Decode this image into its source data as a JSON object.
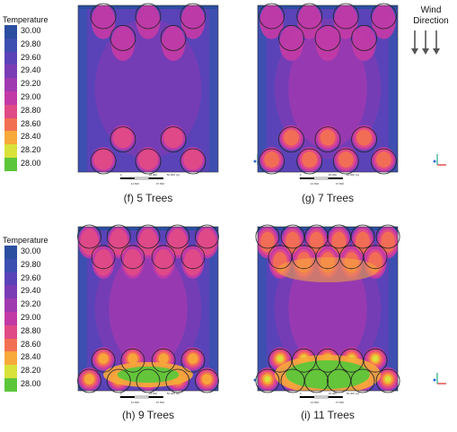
{
  "legend": {
    "title": "Temperature",
    "levels": [
      {
        "value": "30.00",
        "color": "#2b4ea0"
      },
      {
        "value": "29.80",
        "color": "#3d4fb0"
      },
      {
        "value": "29.60",
        "color": "#5a43b8"
      },
      {
        "value": "29.40",
        "color": "#7a3cb4"
      },
      {
        "value": "29.20",
        "color": "#a03ab0"
      },
      {
        "value": "29.00",
        "color": "#c23aa6"
      },
      {
        "value": "28.80",
        "color": "#e04a86"
      },
      {
        "value": "28.60",
        "color": "#f27052"
      },
      {
        "value": "28.40",
        "color": "#f7a93a"
      },
      {
        "value": "28.20",
        "color": "#d8e23a"
      },
      {
        "value": "28.00",
        "color": "#5cc63a"
      }
    ]
  },
  "wind": {
    "line1": "Wind",
    "line2": "Direction"
  },
  "panels": [
    {
      "caption": "(f)  5 Trees",
      "trees": 5
    },
    {
      "caption": "(g) 7 Trees",
      "trees": 7
    },
    {
      "caption": "(h) 9 Trees",
      "trees": 9
    },
    {
      "caption": "(i) 11 Trees",
      "trees": 11
    }
  ],
  "scale_bar": {
    "labels": [
      "0",
      "25.000",
      "50.000 (m)",
      "12.500",
      "37.500"
    ]
  },
  "colors": {
    "domain_bg": "#6a3cb8",
    "edge": "#2d4f9c"
  }
}
